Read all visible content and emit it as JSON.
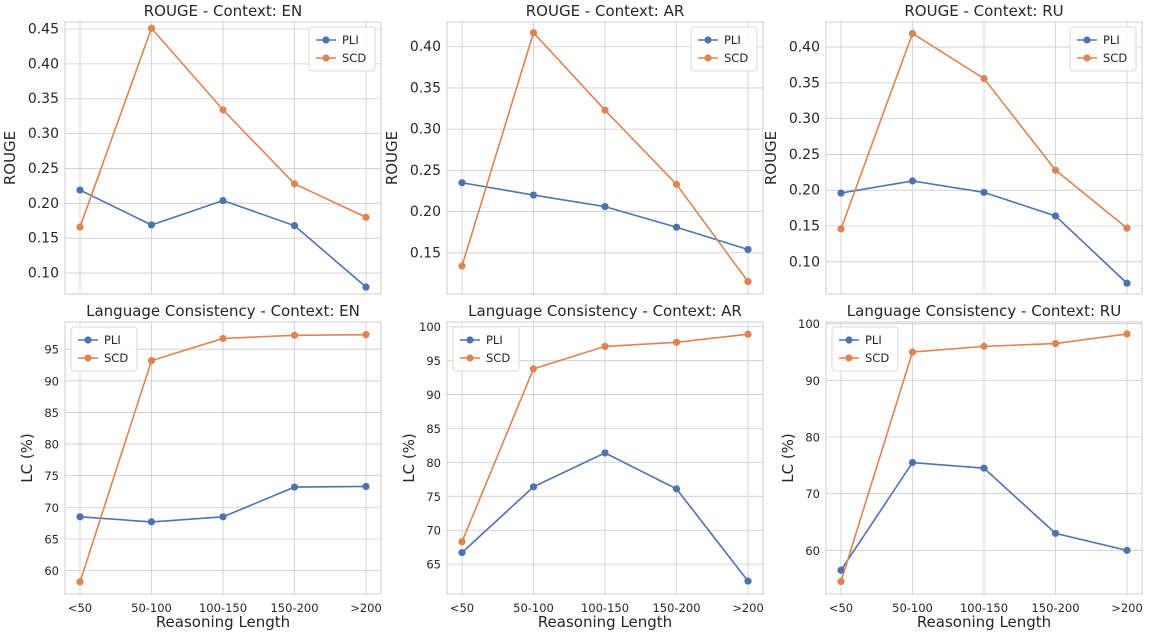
{
  "chart_data": [
    {
      "type": "line",
      "title": "ROUGE - Context: EN",
      "xlabel": "",
      "ylabel": "ROUGE",
      "categories": [
        "<50",
        "50-100",
        "100-150",
        "150-200",
        ">200"
      ],
      "ylim": [
        0.07,
        0.46
      ],
      "yticks": [
        "0.10",
        "0.15",
        "0.20",
        "0.25",
        "0.30",
        "0.35",
        "0.40",
        "0.45"
      ],
      "show_xticklabels": false,
      "legend": "top-right",
      "grid": true,
      "series": [
        {
          "name": "PLI",
          "color": "#4c72b0",
          "values": [
            0.219,
            0.169,
            0.204,
            0.168,
            0.08
          ]
        },
        {
          "name": "SCD",
          "color": "#dd8452",
          "values": [
            0.166,
            0.451,
            0.334,
            0.228,
            0.18
          ]
        }
      ]
    },
    {
      "type": "line",
      "title": "ROUGE - Context: AR",
      "xlabel": "",
      "ylabel": "ROUGE",
      "categories": [
        "<50",
        "50-100",
        "100-150",
        "150-200",
        ">200"
      ],
      "ylim": [
        0.1,
        0.43
      ],
      "yticks": [
        "0.15",
        "0.20",
        "0.25",
        "0.30",
        "0.35",
        "0.40"
      ],
      "show_xticklabels": false,
      "legend": "top-right",
      "grid": true,
      "series": [
        {
          "name": "PLI",
          "color": "#4c72b0",
          "values": [
            0.235,
            0.22,
            0.206,
            0.181,
            0.154
          ]
        },
        {
          "name": "SCD",
          "color": "#dd8452",
          "values": [
            0.134,
            0.417,
            0.323,
            0.233,
            0.115
          ]
        }
      ]
    },
    {
      "type": "line",
      "title": "ROUGE - Context: RU",
      "xlabel": "",
      "ylabel": "ROUGE",
      "categories": [
        "<50",
        "50-100",
        "100-150",
        "150-200",
        ">200"
      ],
      "ylim": [
        0.055,
        0.435
      ],
      "yticks": [
        "0.10",
        "0.15",
        "0.20",
        "0.25",
        "0.30",
        "0.35",
        "0.40"
      ],
      "show_xticklabels": false,
      "legend": "top-right",
      "grid": true,
      "series": [
        {
          "name": "PLI",
          "color": "#4c72b0",
          "values": [
            0.196,
            0.213,
            0.197,
            0.164,
            0.07
          ]
        },
        {
          "name": "SCD",
          "color": "#dd8452",
          "values": [
            0.146,
            0.419,
            0.356,
            0.228,
            0.147
          ]
        }
      ]
    },
    {
      "type": "line",
      "title": "Language Consistency - Context: EN",
      "xlabel": "Reasoning Length",
      "ylabel": "LC (%)",
      "categories": [
        "<50",
        "50-100",
        "100-150",
        "150-200",
        ">200"
      ],
      "ylim": [
        56.3,
        99.3
      ],
      "yticks": [
        "60",
        "65",
        "70",
        "75",
        "80",
        "85",
        "90",
        "95"
      ],
      "show_xticklabels": true,
      "legend": "top-left",
      "grid": true,
      "series": [
        {
          "name": "PLI",
          "color": "#4c72b0",
          "values": [
            68.5,
            67.7,
            68.5,
            73.2,
            73.3
          ]
        },
        {
          "name": "SCD",
          "color": "#dd8452",
          "values": [
            58.2,
            93.2,
            96.7,
            97.2,
            97.3
          ]
        }
      ]
    },
    {
      "type": "line",
      "title": "Language Consistency - Context: AR",
      "xlabel": "Reasoning Length",
      "ylabel": "LC (%)",
      "categories": [
        "<50",
        "50-100",
        "100-150",
        "150-200",
        ">200"
      ],
      "ylim": [
        60.6,
        100.7
      ],
      "yticks": [
        "65",
        "70",
        "75",
        "80",
        "85",
        "90",
        "95",
        "100"
      ],
      "show_xticklabels": true,
      "legend": "top-left",
      "grid": true,
      "series": [
        {
          "name": "PLI",
          "color": "#4c72b0",
          "values": [
            66.7,
            76.4,
            81.4,
            76.1,
            62.5
          ]
        },
        {
          "name": "SCD",
          "color": "#dd8452",
          "values": [
            68.3,
            93.8,
            97.1,
            97.7,
            98.9
          ]
        }
      ]
    },
    {
      "type": "line",
      "title": "Language Consistency - Context: RU",
      "xlabel": "Reasoning Length",
      "ylabel": "LC (%)",
      "categories": [
        "<50",
        "50-100",
        "100-150",
        "150-200",
        ">200"
      ],
      "ylim": [
        52.3,
        100.3
      ],
      "yticks": [
        "60",
        "70",
        "80",
        "90",
        "100"
      ],
      "show_xticklabels": true,
      "legend": "top-left",
      "grid": true,
      "series": [
        {
          "name": "PLI",
          "color": "#4c72b0",
          "values": [
            56.5,
            75.5,
            74.5,
            63.0,
            60.0
          ]
        },
        {
          "name": "SCD",
          "color": "#dd8452",
          "values": [
            54.5,
            95.0,
            96.0,
            96.5,
            98.2
          ]
        }
      ]
    }
  ]
}
